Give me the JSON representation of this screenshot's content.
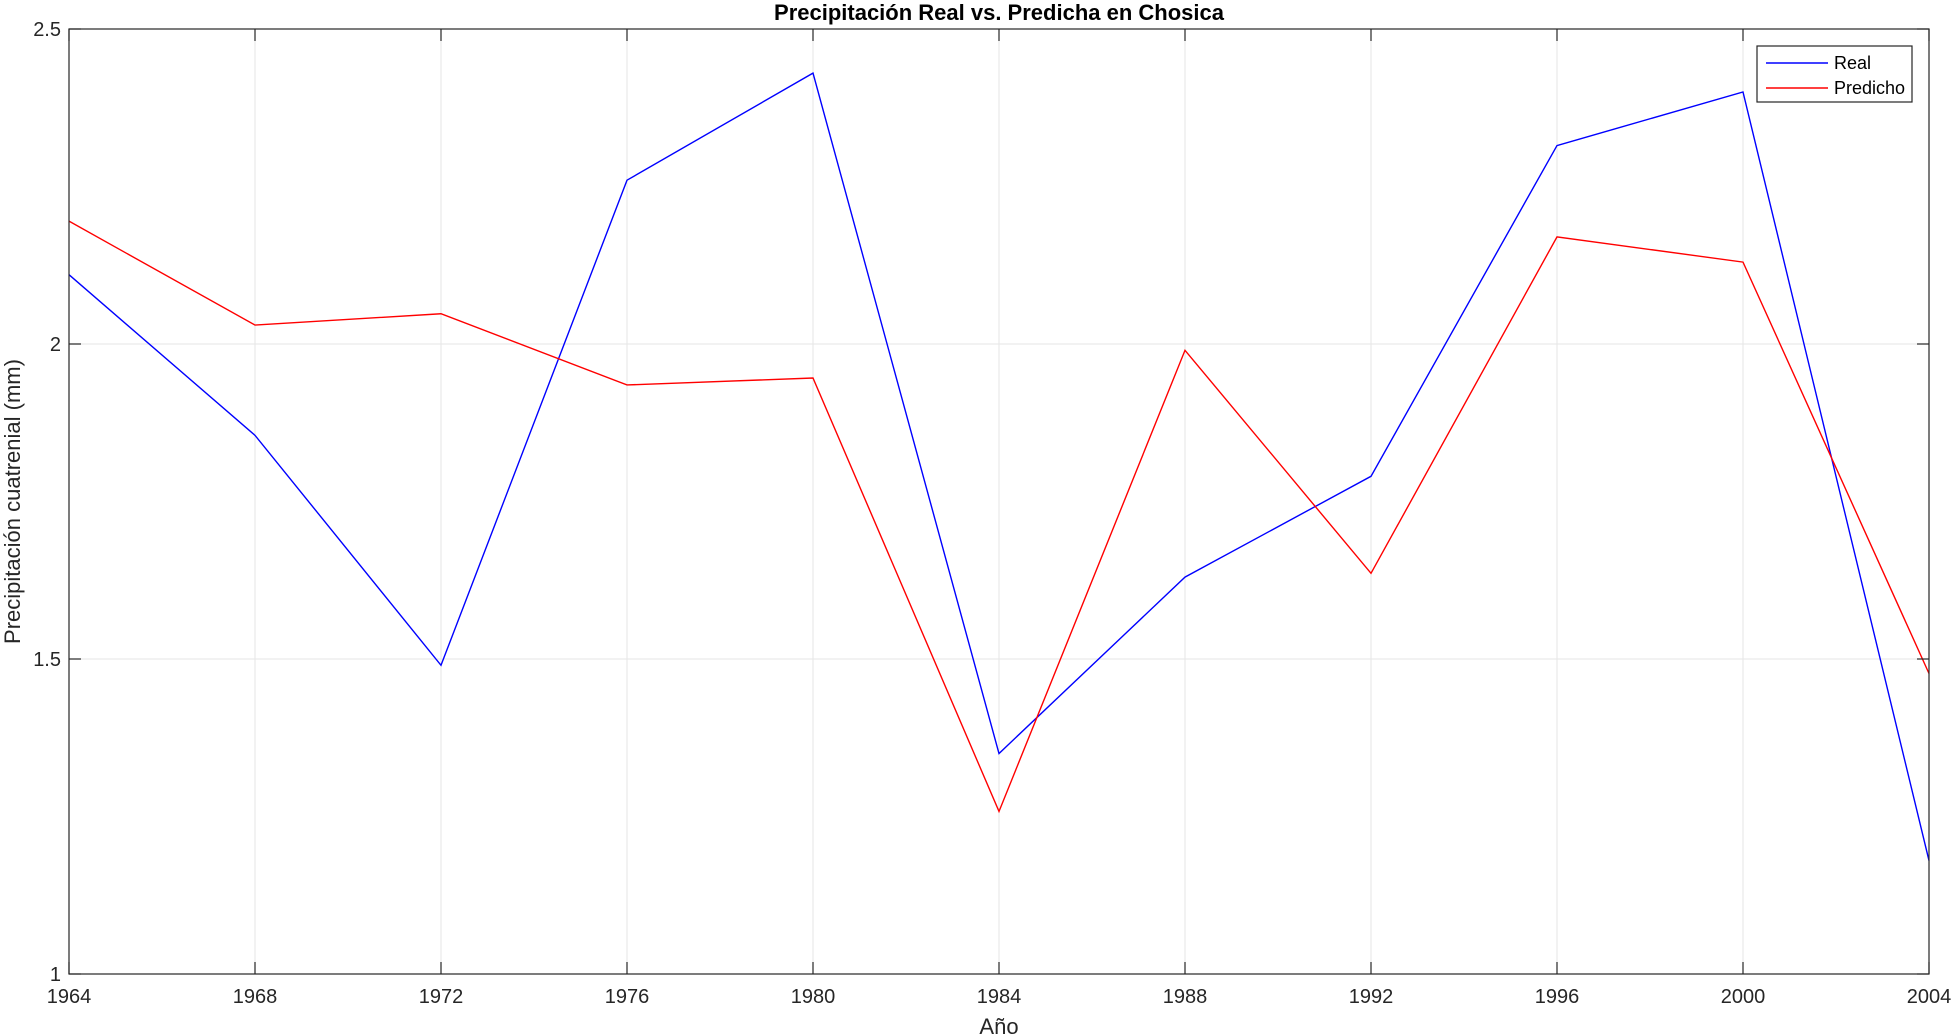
{
  "chart_data": {
    "type": "line",
    "title": "Precipitación Real vs. Predicha en Chosica",
    "xlabel": "Año",
    "ylabel": "Precipitación cuatrenial (mm)",
    "x": [
      1964,
      1968,
      1972,
      1976,
      1980,
      1984,
      1988,
      1992,
      1996,
      2000,
      2004
    ],
    "xticks": [
      "1964",
      "1968",
      "1972",
      "1976",
      "1980",
      "1984",
      "1988",
      "1992",
      "1996",
      "2000",
      "2004"
    ],
    "yticks": [
      "1",
      "1.5",
      "2",
      "2.5"
    ],
    "xlim": [
      1964,
      2004
    ],
    "ylim": [
      1,
      2.5
    ],
    "grid": true,
    "legend_position": "top-right",
    "series": [
      {
        "name": "Real",
        "color": "#0000ff",
        "values": [
          2.11,
          1.855,
          1.49,
          2.26,
          2.43,
          1.35,
          1.63,
          1.79,
          2.315,
          2.4,
          1.18
        ]
      },
      {
        "name": "Predicho",
        "color": "#ff0000",
        "values": [
          2.195,
          2.03,
          2.048,
          1.935,
          1.946,
          1.258,
          1.99,
          1.636,
          2.17,
          2.13,
          1.477
        ]
      }
    ]
  }
}
